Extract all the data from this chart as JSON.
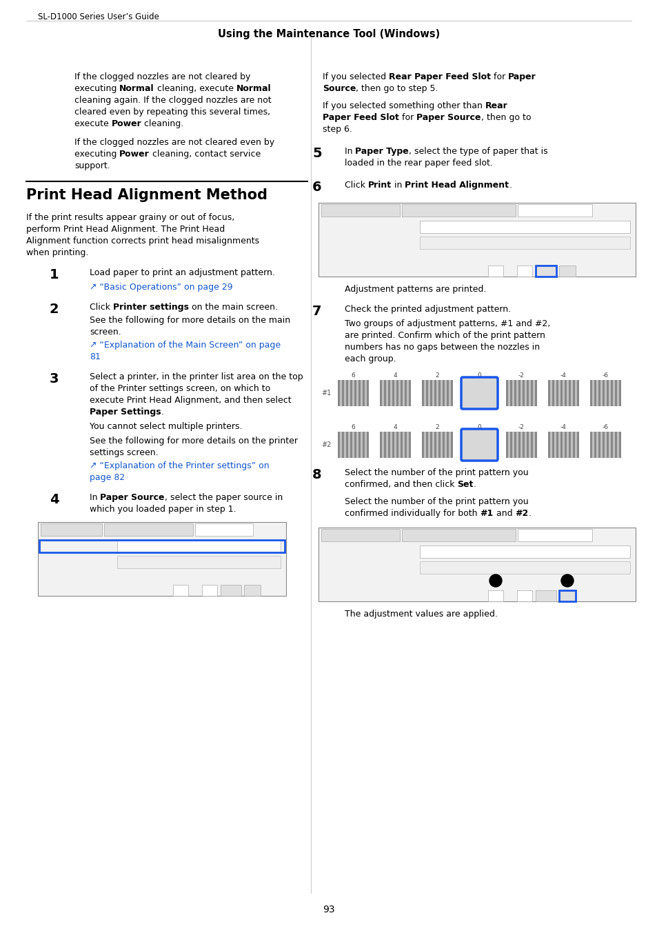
{
  "page_header": "SL-D1000 Series User’s Guide",
  "section_title": "Using the Maintenance Tool (Windows)",
  "bg_color": "#ffffff",
  "text_color": "#000000",
  "link_color": "#1155cc",
  "page_number": "93",
  "fig_width": 9.54,
  "fig_height": 13.5,
  "dpi": 100
}
